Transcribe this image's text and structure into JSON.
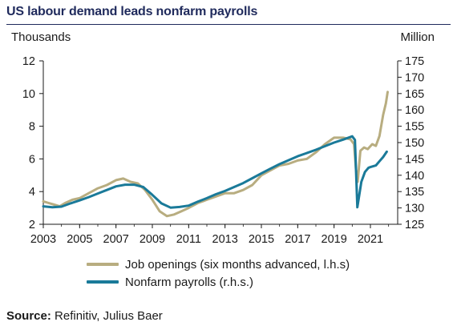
{
  "title": "US labour demand leads nonfarm payrolls",
  "source": {
    "label": "Source:",
    "text": " Refinitiv, Julius Baer"
  },
  "colors": {
    "job_openings": "#b8ad80",
    "nonfarm": "#1a7a99",
    "title": "#1f2a5c"
  },
  "chart_data": {
    "type": "line",
    "left_axis_label": "Thousands",
    "right_axis_label": "Million",
    "xlim": [
      2003,
      2022.5
    ],
    "ylim_left": [
      2,
      12
    ],
    "ylim_right": [
      125,
      175
    ],
    "x_ticks": [
      "2003",
      "2005",
      "2007",
      "2009",
      "2011",
      "2013",
      "2015",
      "2017",
      "2019",
      "2021"
    ],
    "y_left_ticks": [
      "2",
      "4",
      "6",
      "8",
      "10",
      "12"
    ],
    "y_right_ticks": [
      "125",
      "130",
      "135",
      "140",
      "145",
      "150",
      "155",
      "160",
      "165",
      "170",
      "175"
    ],
    "grid": false,
    "legend_position": "bottom",
    "series": [
      {
        "name": "Job openings (six months advanced, l.h.s)",
        "axis": "left",
        "points": [
          [
            2003,
            3.4
          ],
          [
            2003.3,
            3.3
          ],
          [
            2003.6,
            3.2
          ],
          [
            2003.9,
            3.1
          ],
          [
            2004.2,
            3.3
          ],
          [
            2004.6,
            3.5
          ],
          [
            2005,
            3.6
          ],
          [
            2005.5,
            3.9
          ],
          [
            2006,
            4.2
          ],
          [
            2006.5,
            4.4
          ],
          [
            2007,
            4.7
          ],
          [
            2007.4,
            4.8
          ],
          [
            2007.8,
            4.6
          ],
          [
            2008.2,
            4.5
          ],
          [
            2008.6,
            4.1
          ],
          [
            2009,
            3.5
          ],
          [
            2009.4,
            2.8
          ],
          [
            2009.8,
            2.5
          ],
          [
            2010.2,
            2.6
          ],
          [
            2010.6,
            2.8
          ],
          [
            2011,
            3.0
          ],
          [
            2011.5,
            3.3
          ],
          [
            2012,
            3.5
          ],
          [
            2012.5,
            3.7
          ],
          [
            2013,
            3.9
          ],
          [
            2013.5,
            3.9
          ],
          [
            2014,
            4.1
          ],
          [
            2014.5,
            4.4
          ],
          [
            2015,
            5.0
          ],
          [
            2015.5,
            5.3
          ],
          [
            2016,
            5.6
          ],
          [
            2016.5,
            5.7
          ],
          [
            2017,
            5.9
          ],
          [
            2017.5,
            6.0
          ],
          [
            2018,
            6.4
          ],
          [
            2018.5,
            6.9
          ],
          [
            2019,
            7.3
          ],
          [
            2019.5,
            7.3
          ],
          [
            2019.9,
            7.2
          ],
          [
            2020.1,
            6.9
          ],
          [
            2020.2,
            5.4
          ],
          [
            2020.3,
            4.6
          ],
          [
            2020.45,
            6.5
          ],
          [
            2020.65,
            6.7
          ],
          [
            2020.85,
            6.6
          ],
          [
            2021.1,
            6.9
          ],
          [
            2021.3,
            6.8
          ],
          [
            2021.5,
            7.4
          ],
          [
            2021.7,
            8.7
          ],
          [
            2021.85,
            9.4
          ],
          [
            2021.95,
            10.1
          ]
        ]
      },
      {
        "name": "Nonfarm payrolls (r.h.s.)",
        "axis": "right",
        "points": [
          [
            2003,
            130.5
          ],
          [
            2003.5,
            130.2
          ],
          [
            2004,
            130.4
          ],
          [
            2004.5,
            131.4
          ],
          [
            2005,
            132.3
          ],
          [
            2005.5,
            133.3
          ],
          [
            2006,
            134.4
          ],
          [
            2006.5,
            135.5
          ],
          [
            2007,
            136.6
          ],
          [
            2007.5,
            137.1
          ],
          [
            2008,
            137.1
          ],
          [
            2008.5,
            136.4
          ],
          [
            2009,
            134.0
          ],
          [
            2009.5,
            131.4
          ],
          [
            2010,
            130.1
          ],
          [
            2010.5,
            130.3
          ],
          [
            2011,
            130.7
          ],
          [
            2011.5,
            131.9
          ],
          [
            2012,
            133.0
          ],
          [
            2012.5,
            134.2
          ],
          [
            2013,
            135.2
          ],
          [
            2013.5,
            136.4
          ],
          [
            2014,
            137.6
          ],
          [
            2014.5,
            139.1
          ],
          [
            2015,
            140.6
          ],
          [
            2015.5,
            142.0
          ],
          [
            2016,
            143.4
          ],
          [
            2016.5,
            144.6
          ],
          [
            2017,
            145.8
          ],
          [
            2017.5,
            146.8
          ],
          [
            2018,
            147.8
          ],
          [
            2018.5,
            148.9
          ],
          [
            2019,
            150.0
          ],
          [
            2019.5,
            150.9
          ],
          [
            2020,
            151.9
          ],
          [
            2020.15,
            150.8
          ],
          [
            2020.28,
            130.2
          ],
          [
            2020.5,
            138.0
          ],
          [
            2020.7,
            141.0
          ],
          [
            2020.9,
            142.3
          ],
          [
            2021,
            142.5
          ],
          [
            2021.3,
            143.0
          ],
          [
            2021.5,
            144.3
          ],
          [
            2021.7,
            145.6
          ],
          [
            2021.9,
            147.2
          ]
        ]
      }
    ]
  }
}
